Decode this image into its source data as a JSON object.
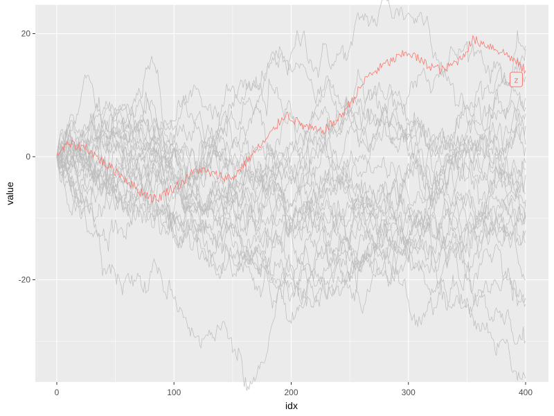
{
  "colors": {
    "panel_bg": "#EBEBEB",
    "grid_major": "#FFFFFF",
    "grid_minor": "#F5F5F5",
    "background_series": "#BEBEBE",
    "highlight_series": "#F8766D",
    "tick_text": "#4D4D4D",
    "tick_mark": "#333333"
  },
  "chart_data": {
    "type": "line",
    "title": "",
    "xlabel": "idx",
    "ylabel": "value",
    "xlim": [
      -18,
      420
    ],
    "ylim": [
      -37,
      25.5
    ],
    "x_ticks": [
      0,
      100,
      200,
      300,
      400
    ],
    "x_tick_labels": [
      "0",
      "100",
      "200",
      "300",
      "400"
    ],
    "y_ticks": [
      -20,
      0,
      20
    ],
    "y_tick_labels": [
      "-20",
      "0",
      "20"
    ],
    "grid": true,
    "legend": "none",
    "n_background_series": 25,
    "background_series_note": "gray random walks, 400 steps each, starting near 0",
    "background_series_endpoints": [
      18,
      17.5,
      13,
      9.5,
      8,
      7,
      5,
      2,
      1.5,
      -1,
      -2,
      -3,
      -6,
      -7,
      -8,
      -9,
      -9.5,
      -10,
      -12,
      -14,
      -20,
      -23,
      -24,
      -30,
      -36
    ],
    "highlight_series": {
      "name": "z",
      "label": "z",
      "x": [
        0,
        10,
        25,
        40,
        55,
        70,
        85,
        95,
        105,
        120,
        135,
        150,
        165,
        180,
        195,
        210,
        225,
        240,
        255,
        265,
        280,
        300,
        315,
        330,
        345,
        355,
        370,
        385,
        400
      ],
      "y": [
        0.5,
        2,
        1.5,
        -1,
        -3,
        -5.5,
        -7,
        -5.5,
        -4.5,
        -2,
        -3,
        -3.5,
        0,
        3,
        7,
        5,
        4,
        6,
        10,
        13,
        15,
        17,
        15,
        14,
        16,
        19,
        18,
        16.5,
        14
      ]
    },
    "annotation": {
      "text": "z",
      "x": 392,
      "y": 12.5,
      "style": "boxed-label"
    }
  }
}
